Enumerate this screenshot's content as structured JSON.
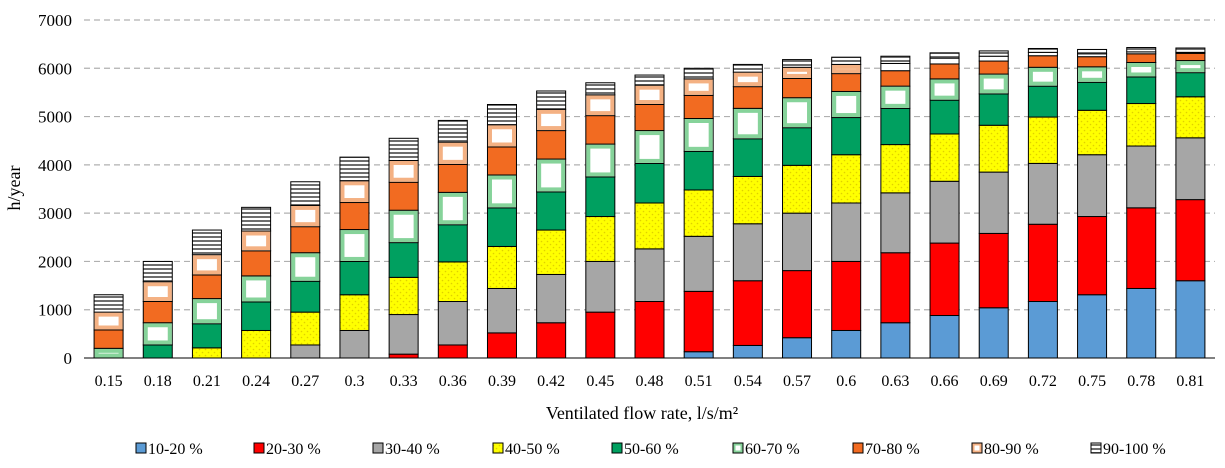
{
  "chart_data": {
    "type": "bar",
    "stacked": true,
    "title": "",
    "xlabel": "Ventilated flow rate, l/s/m²",
    "ylabel": "h/year",
    "ylim": [
      0,
      7000
    ],
    "yticks": [
      0,
      1000,
      2000,
      3000,
      4000,
      5000,
      6000,
      7000
    ],
    "grid": "horizontal dashed",
    "legend_position": "bottom",
    "categories": [
      "0.15",
      "0.18",
      "0.21",
      "0.24",
      "0.27",
      "0.3",
      "0.33",
      "0.36",
      "0.39",
      "0.42",
      "0.45",
      "0.48",
      "0.51",
      "0.54",
      "0.57",
      "0.6",
      "0.63",
      "0.66",
      "0.69",
      "0.72",
      "0.75",
      "0.78",
      "0.81"
    ],
    "series": [
      {
        "name": "10-20 %",
        "color": "#5b9bd5",
        "pattern": "solid",
        "values": [
          0,
          0,
          0,
          0,
          0,
          0,
          0,
          0,
          0,
          0,
          0,
          0,
          130,
          260,
          420,
          570,
          730,
          880,
          1040,
          1170,
          1310,
          1440,
          1600
        ]
      },
      {
        "name": "20-30 %",
        "color": "#ff0000",
        "pattern": "solid",
        "values": [
          0,
          0,
          0,
          0,
          0,
          0,
          80,
          270,
          520,
          730,
          950,
          1170,
          1250,
          1340,
          1390,
          1430,
          1450,
          1500,
          1540,
          1600,
          1620,
          1670,
          1680
        ]
      },
      {
        "name": "30-40 %",
        "color": "#a6a6a6",
        "pattern": "solid",
        "values": [
          0,
          0,
          0,
          0,
          270,
          570,
          820,
          900,
          920,
          1000,
          1050,
          1090,
          1140,
          1180,
          1190,
          1210,
          1240,
          1280,
          1270,
          1260,
          1280,
          1280,
          1280
        ]
      },
      {
        "name": "40-50 %",
        "color": "#ffff00",
        "pattern": "dotted",
        "values": [
          0,
          0,
          210,
          570,
          680,
          740,
          770,
          820,
          870,
          920,
          930,
          950,
          960,
          980,
          990,
          1000,
          1000,
          980,
          970,
          960,
          920,
          880,
          850
        ]
      },
      {
        "name": "50-60 %",
        "color": "#00a060",
        "pattern": "solid",
        "values": [
          0,
          270,
          500,
          590,
          640,
          690,
          720,
          770,
          800,
          790,
          820,
          820,
          800,
          780,
          780,
          770,
          750,
          700,
          650,
          640,
          580,
          550,
          500
        ]
      },
      {
        "name": "60-70 %",
        "color": "#ffffff",
        "pattern": "green-frame",
        "values": [
          200,
          460,
          520,
          540,
          590,
          660,
          670,
          670,
          680,
          680,
          680,
          680,
          680,
          630,
          620,
          540,
          460,
          440,
          410,
          390,
          320,
          300,
          250
        ]
      },
      {
        "name": "70-80 %",
        "color": "#f26b21",
        "pattern": "solid",
        "values": [
          380,
          440,
          490,
          520,
          540,
          560,
          580,
          580,
          580,
          590,
          590,
          540,
          480,
          450,
          400,
          370,
          320,
          310,
          270,
          240,
          210,
          180,
          150
        ]
      },
      {
        "name": "80-90 %",
        "color": "#ffffff",
        "pattern": "orange-frame",
        "values": [
          370,
          410,
          420,
          410,
          440,
          450,
          450,
          460,
          460,
          440,
          430,
          400,
          340,
          300,
          230,
          190,
          150,
          120,
          100,
          70,
          60,
          40,
          20
        ]
      },
      {
        "name": "90-100 %",
        "color": "#808080",
        "pattern": "striped",
        "values": [
          360,
          420,
          510,
          490,
          490,
          490,
          460,
          450,
          420,
          380,
          250,
          210,
          220,
          160,
          160,
          150,
          150,
          110,
          110,
          80,
          90,
          90,
          90
        ]
      }
    ],
    "legend": [
      "10-20 %",
      "20-30 %",
      "30-40 %",
      "40-50 %",
      "50-60 %",
      "60-70 %",
      "70-80 %",
      "80-90 %",
      "90-100 %"
    ]
  }
}
